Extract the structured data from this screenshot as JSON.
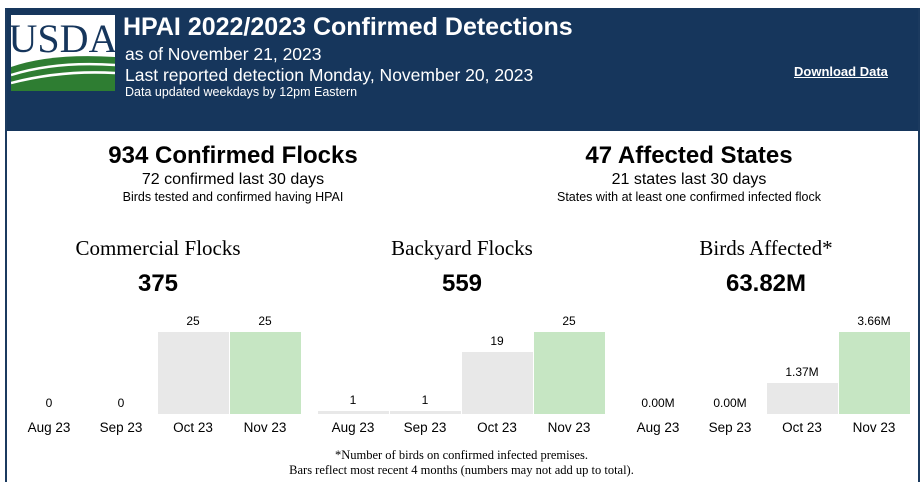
{
  "header": {
    "logo_text": "USDA",
    "title": "HPAI 2022/2023 Confirmed Detections",
    "as_of": "as of November 21, 2023",
    "last_reported": "Last reported detection Monday, November 20, 2023",
    "updated_note": "Data updated weekdays by 12pm Eastern",
    "download_label": "Download Data"
  },
  "colors": {
    "header_bg": "#16365c",
    "bar_past": "#e8e8e8",
    "bar_current": "#c6e6c3",
    "logo_green": "#2e7d32"
  },
  "summary": {
    "flocks": {
      "headline": "934 Confirmed Flocks",
      "recent": "72 confirmed last 30 days",
      "description": "Birds tested and confirmed having HPAI"
    },
    "states": {
      "headline": "47 Affected States",
      "recent": "21 states last 30 days",
      "description": "States with at least one confirmed infected flock"
    }
  },
  "panels": [
    {
      "title": "Commercial Flocks",
      "total": "375"
    },
    {
      "title": "Backyard Flocks",
      "total": "559"
    },
    {
      "title": "Birds Affected*",
      "total": "63.82M"
    }
  ],
  "chart_data": [
    {
      "type": "bar",
      "title": "Commercial Flocks",
      "categories": [
        "Aug 23",
        "Sep 23",
        "Oct 23",
        "Nov 23"
      ],
      "values": [
        0,
        0,
        25,
        25
      ],
      "labels": [
        "0",
        "0",
        "25",
        "25"
      ],
      "ylim": [
        0,
        25
      ]
    },
    {
      "type": "bar",
      "title": "Backyard Flocks",
      "categories": [
        "Aug 23",
        "Sep 23",
        "Oct 23",
        "Nov 23"
      ],
      "values": [
        1,
        1,
        19,
        25
      ],
      "labels": [
        "1",
        "1",
        "19",
        "25"
      ],
      "ylim": [
        0,
        25
      ]
    },
    {
      "type": "bar",
      "title": "Birds Affected*",
      "categories": [
        "Aug 23",
        "Sep 23",
        "Oct 23",
        "Nov 23"
      ],
      "values": [
        0.0,
        0.0,
        1.37,
        3.66
      ],
      "labels": [
        "0.00M",
        "0.00M",
        "1.37M",
        "3.66M"
      ],
      "ylim": [
        0,
        3.66
      ]
    }
  ],
  "footnotes": {
    "line1": "*Number of birds on confirmed infected premises.",
    "line2": "Bars reflect most recent 4 months (numbers may not add up to total)."
  }
}
